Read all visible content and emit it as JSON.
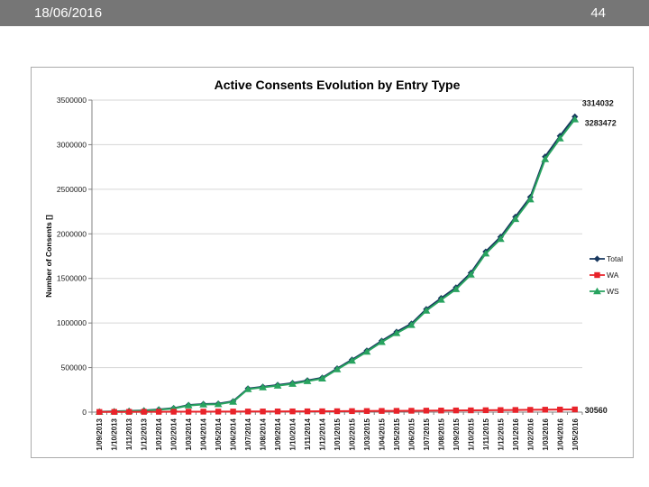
{
  "header": {
    "date": "18/06/2016",
    "page_number": "44",
    "bg_color": "#767676"
  },
  "chart_data": {
    "type": "line",
    "title": "Active Consents Evolution by Entry Type",
    "ylabel": "Number of Consents []",
    "ylim": [
      0,
      3500000
    ],
    "ytick_step": 500000,
    "yticks": [
      "0",
      "500000",
      "1000000",
      "1500000",
      "2000000",
      "2500000",
      "3000000",
      "3500000"
    ],
    "grid": true,
    "legend_position": "right",
    "categories": [
      "1/09/2013",
      "1/10/2013",
      "1/11/2013",
      "1/12/2013",
      "1/01/2014",
      "1/02/2014",
      "1/03/2014",
      "1/04/2014",
      "1/05/2014",
      "1/06/2014",
      "1/07/2014",
      "1/08/2014",
      "1/09/2014",
      "1/10/2014",
      "1/11/2014",
      "1/12/2014",
      "1/01/2015",
      "1/02/2015",
      "1/03/2015",
      "1/04/2015",
      "1/05/2015",
      "1/06/2015",
      "1/07/2015",
      "1/08/2015",
      "1/09/2015",
      "1/10/2015",
      "1/11/2015",
      "1/12/2015",
      "1/01/2016",
      "1/02/2016",
      "1/03/2016",
      "1/04/2016",
      "1/05/2016"
    ],
    "series": [
      {
        "name": "Total",
        "color": "#17375E",
        "marker": "diamond",
        "values": [
          5000,
          9000,
          14000,
          19000,
          30000,
          45000,
          80000,
          91000,
          95000,
          122000,
          265000,
          285000,
          305000,
          326000,
          356000,
          386000,
          490000,
          588000,
          690000,
          800000,
          900000,
          992000,
          1155000,
          1278000,
          1398000,
          1562000,
          1800000,
          1965000,
          2190000,
          2412000,
          2865000,
          3098000,
          3314032
        ]
      },
      {
        "name": "WA",
        "color": "#E8232A",
        "marker": "square",
        "values": [
          2000,
          2500,
          3000,
          3500,
          4000,
          4500,
          5000,
          5500,
          6000,
          6500,
          7000,
          7500,
          8000,
          8500,
          9000,
          9500,
          10500,
          11500,
          12500,
          13500,
          14500,
          15500,
          17000,
          18000,
          19000,
          20000,
          21500,
          23000,
          24500,
          26000,
          27500,
          29000,
          30560
        ]
      },
      {
        "name": "WS",
        "color": "#28A35F",
        "marker": "triangle",
        "values": [
          3000,
          6500,
          11000,
          15500,
          26000,
          40500,
          75000,
          85500,
          89000,
          115500,
          258000,
          277500,
          297000,
          317500,
          347000,
          376500,
          479500,
          576500,
          677500,
          786500,
          885500,
          976500,
          1138000,
          1260000,
          1379000,
          1542000,
          1778500,
          1942000,
          2165500,
          2386000,
          2837500,
          3069000,
          3283472
        ]
      }
    ],
    "end_labels": [
      {
        "series": "Total",
        "text": "3314032"
      },
      {
        "series": "WS",
        "text": "3283472"
      },
      {
        "series": "WA",
        "text": "30560"
      }
    ]
  }
}
